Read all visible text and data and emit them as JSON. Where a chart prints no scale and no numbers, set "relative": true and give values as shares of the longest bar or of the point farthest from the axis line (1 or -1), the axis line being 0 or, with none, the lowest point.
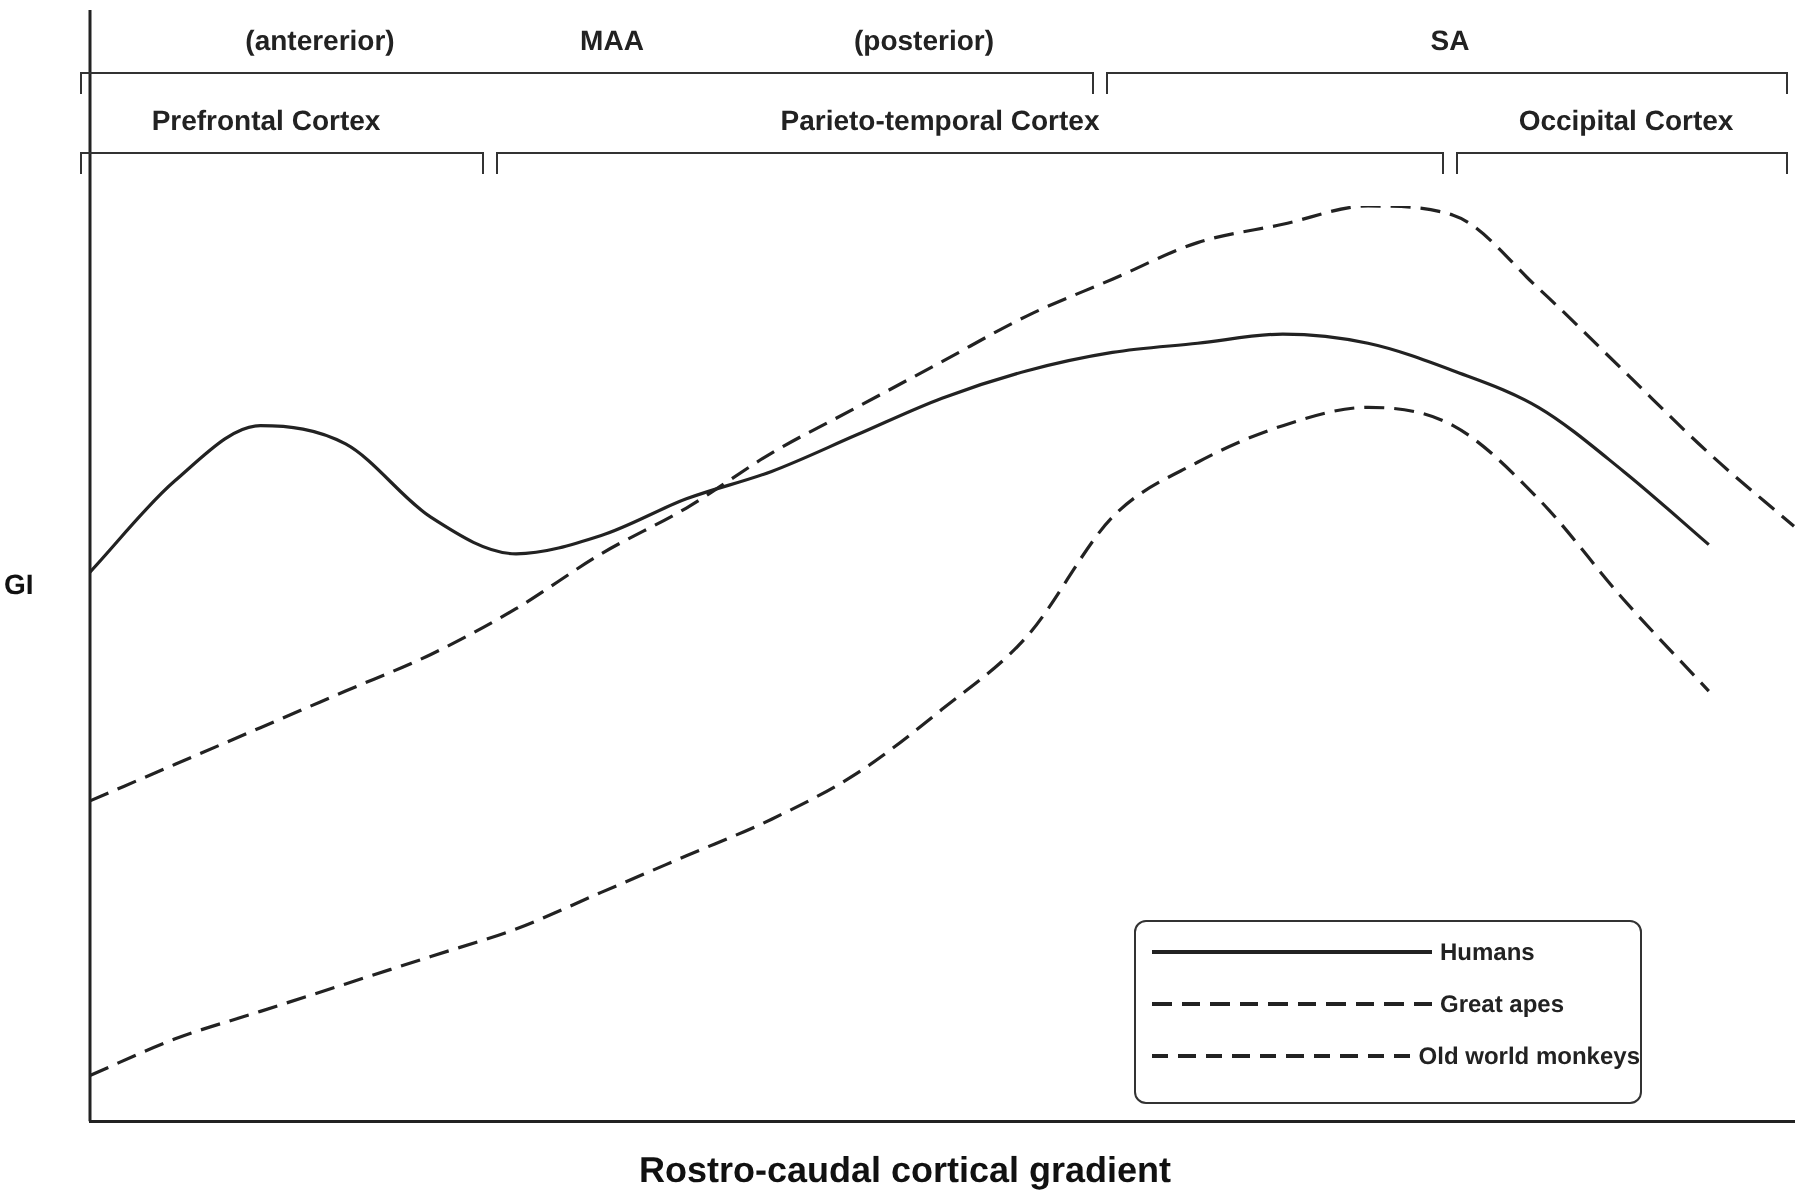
{
  "chart_data": {
    "type": "line",
    "relative": true,
    "xlabel": "Rostro-caudal cortical gradient",
    "ylabel": "GI",
    "grid": false,
    "legend": "bottom right",
    "marker": "none",
    "categories": [
      null,
      null,
      null,
      null,
      null,
      null,
      null,
      null,
      null,
      null,
      null,
      null,
      null,
      null,
      null,
      null,
      null,
      null,
      null,
      null,
      null
    ],
    "annotations": [
      "(antererior)",
      "MAA",
      "(posterior)",
      "SA",
      "Prefrontal Cortex",
      "Parieto-temporal Cortex",
      "Occipital Cortex"
    ],
    "series": [
      {
        "name": "Humans",
        "color": "#222222",
        "line_style": "solid",
        "values": [
          0.6,
          0.7,
          0.76,
          0.74,
          0.66,
          0.62,
          0.64,
          0.68,
          0.71,
          0.75,
          0.79,
          0.82,
          0.84,
          0.85,
          0.86,
          0.85,
          0.82,
          0.78,
          0.71,
          0.63,
          null
        ]
      },
      {
        "name": "Great apes",
        "color": "#222222",
        "line_style": "dashed",
        "values": [
          0.35,
          0.39,
          0.43,
          0.47,
          0.51,
          0.56,
          0.62,
          0.67,
          0.73,
          0.78,
          0.83,
          0.88,
          0.92,
          0.96,
          0.98,
          1,
          0.99,
          0.91,
          0.82,
          0.73,
          0.65
        ]
      },
      {
        "name": "Old world monkeys",
        "color": "#222222",
        "line_style": "dashed",
        "values": [
          0.05,
          0.09,
          0.12,
          0.15,
          0.18,
          0.21,
          0.25,
          0.29,
          0.33,
          0.38,
          0.45,
          0.53,
          0.66,
          0.72,
          0.76,
          0.78,
          0.76,
          0.68,
          0.57,
          0.47,
          null
        ]
      }
    ]
  }
}
